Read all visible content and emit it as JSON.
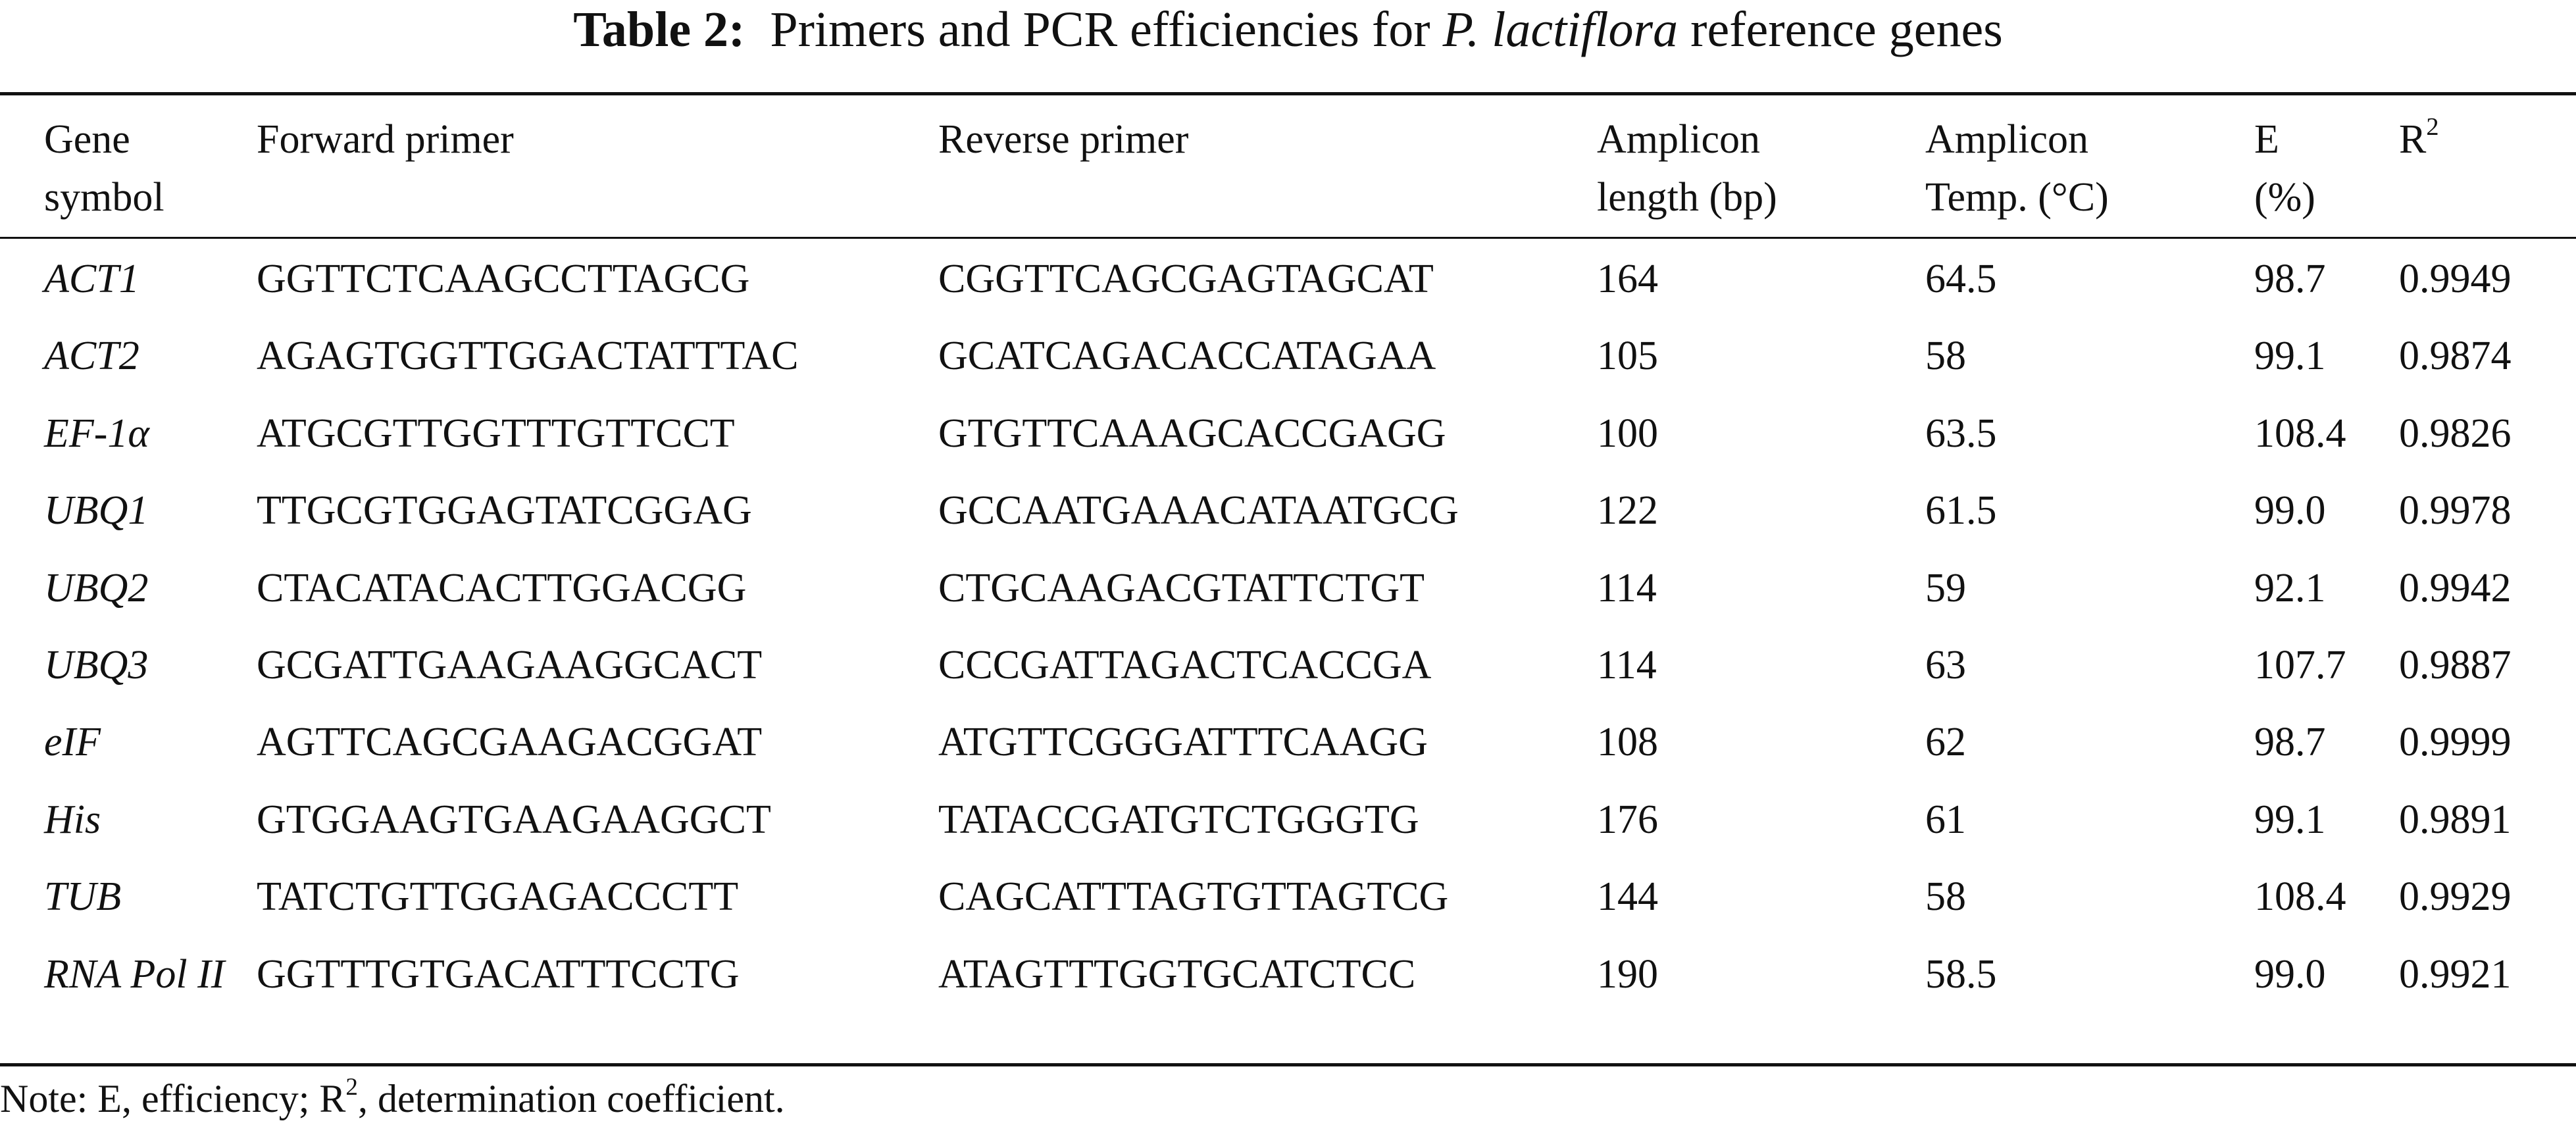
{
  "title": {
    "label": "Table 2:",
    "text_before": "Primers and PCR efficiencies for",
    "species": "P. lactiflora",
    "text_after": "reference genes"
  },
  "table": {
    "header": [
      {
        "lines": [
          "Gene",
          "symbol"
        ]
      },
      {
        "lines": [
          "Forward primer"
        ]
      },
      {
        "lines": [
          "Reverse primer"
        ]
      },
      {
        "lines": [
          "Amplicon",
          "length (bp)"
        ]
      },
      {
        "lines": [
          "Amplicon",
          "Temp. (°C)"
        ]
      },
      {
        "lines": [
          "E",
          "(%)"
        ]
      },
      {
        "text": "R",
        "sup": "2"
      }
    ],
    "rows": [
      [
        "ACT1",
        "GGTTCTCAAGCCTTAGCG",
        "CGGTTCAGCGAGTAGCAT",
        "164",
        "64.5",
        "98.7",
        "0.9949"
      ],
      [
        "ACT2",
        "AGAGTGGTTGGACTATTTAC",
        "GCATCAGACACCATAGAA",
        "105",
        "58",
        "99.1",
        "0.9874"
      ],
      [
        "EF-1α",
        "ATGCGTTGGTTTGTTCCT",
        "GTGTTCAAAGCACCGAGG",
        "100",
        "63.5",
        "108.4",
        "0.9826"
      ],
      [
        "UBQ1",
        "TTGCGTGGAGTATCGGAG",
        "GCCAATGAAACATAATGCG",
        "122",
        "61.5",
        "99.0",
        "0.9978"
      ],
      [
        "UBQ2",
        "CTACATACACTTGGACGG",
        "CTGCAAGACGTATTCTGT",
        "114",
        "59",
        "92.1",
        "0.9942"
      ],
      [
        "UBQ3",
        "GCGATTGAAGAAGGCACT",
        "CCCGATTAGACTCACCGA",
        "114",
        "63",
        "107.7",
        "0.9887"
      ],
      [
        "eIF",
        "AGTTCAGCGAAGACGGAT",
        "ATGTTCGGGATTTCAAGG",
        "108",
        "62",
        "98.7",
        "0.9999"
      ],
      [
        "His",
        "GTGGAAGTGAAGAAGGCT",
        "TATACCGATGTCTGGGTG",
        "176",
        "61",
        "99.1",
        "0.9891"
      ],
      [
        "TUB",
        "TATCTGTTGGAGACCCTT",
        "CAGCATTTAGTGTTAGTCG",
        "144",
        "58",
        "108.4",
        "0.9929"
      ],
      [
        "RNA Pol II",
        "GGTTTGTGACATTTCCTG",
        "ATAGTTTGGTGCATCTCC",
        "190",
        "58.5",
        "99.0",
        "0.9921"
      ]
    ]
  },
  "note": {
    "text_before": "Note: E, efficiency; R",
    "sup": "2",
    "text_after": ", determination coefficient."
  }
}
